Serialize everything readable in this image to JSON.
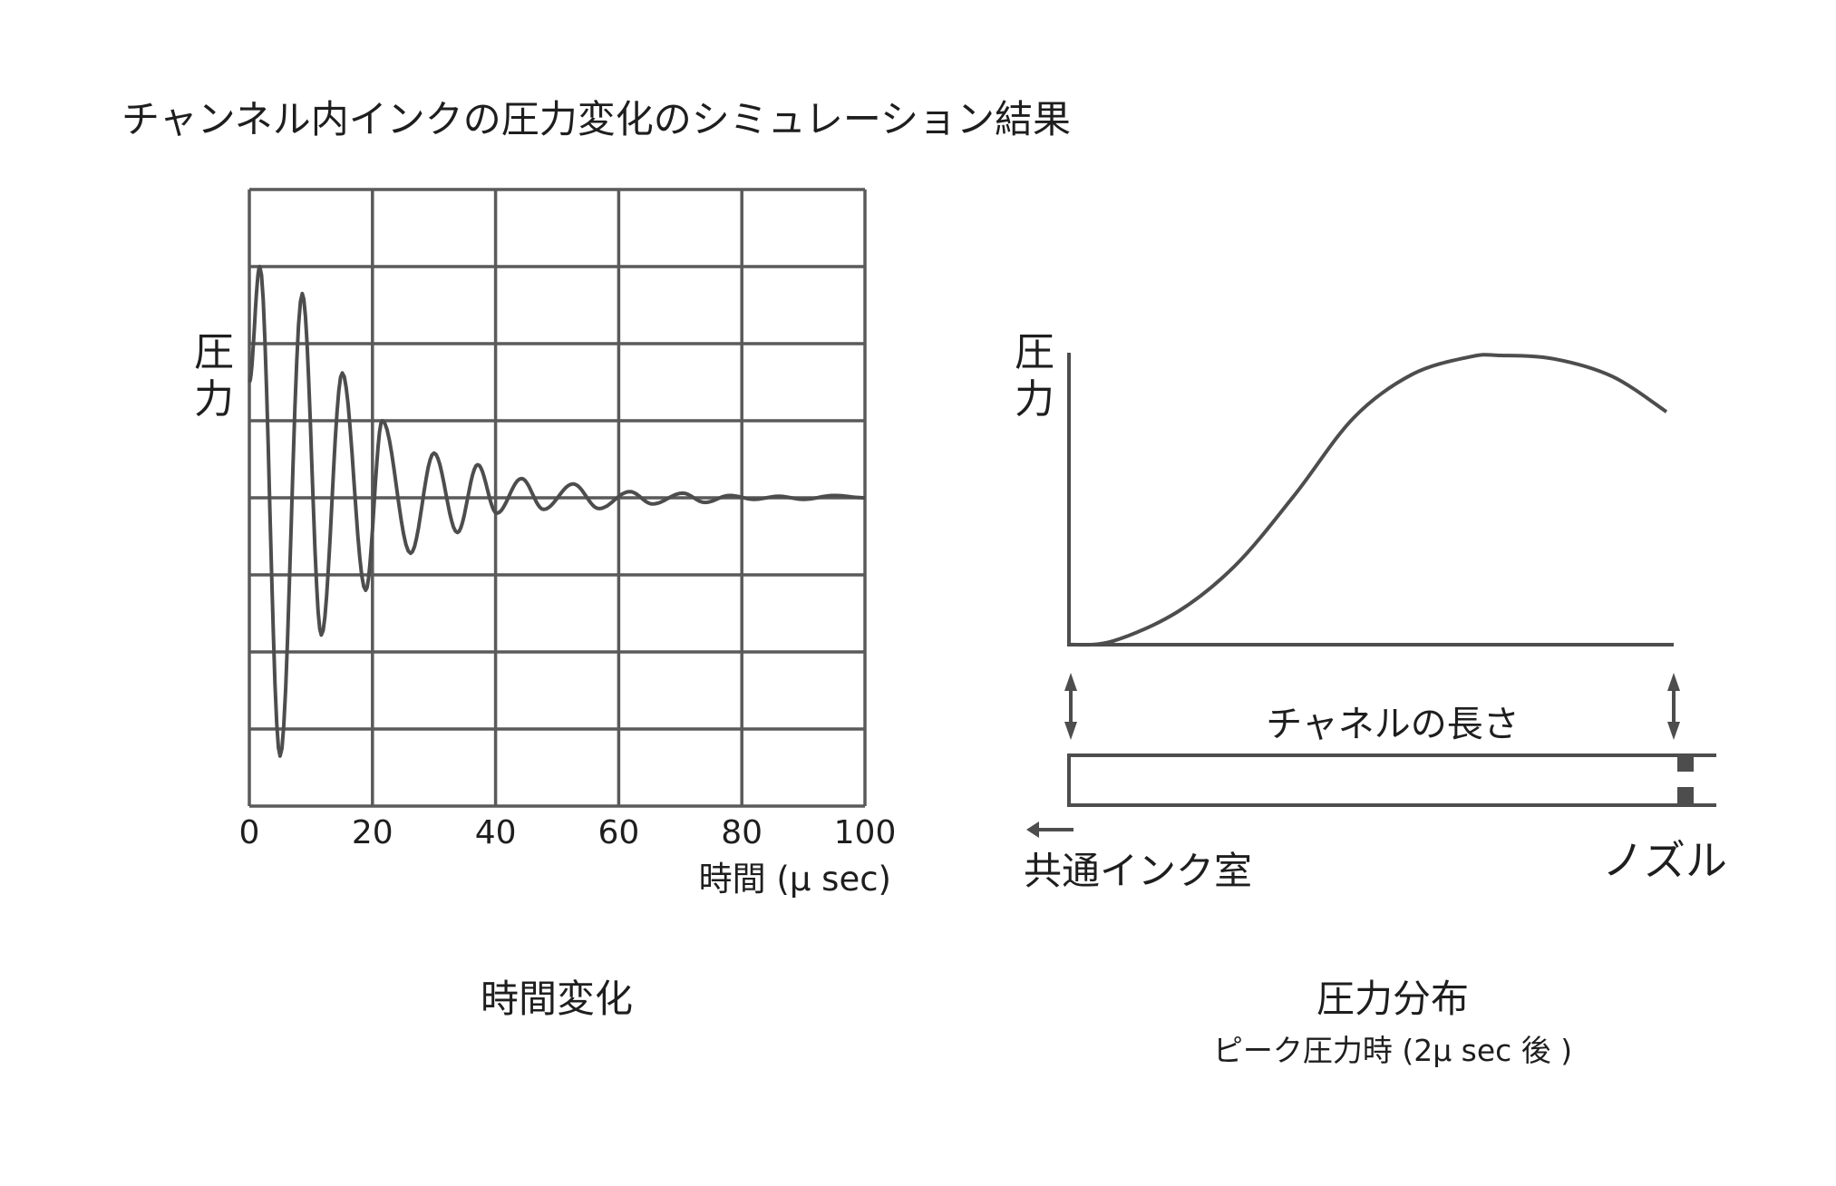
{
  "title": "チャンネル内インクの圧力変化のシミュレーション結果",
  "colors": {
    "line": "#4d4d4d",
    "text": "#1e1e1e"
  },
  "chart_data": [
    {
      "type": "line",
      "caption": "時間変化",
      "xlabel": "時間 (μ sec)",
      "ylabel": "圧力",
      "xlim": [
        0,
        100
      ],
      "ylim": [
        -4,
        4
      ],
      "xticks": [
        "0",
        "20",
        "40",
        "60",
        "80",
        "100"
      ],
      "grid": true,
      "series": [
        {
          "name": "圧力",
          "extrema": [
            [
              0,
              1.5
            ],
            [
              1.7,
              3.0
            ],
            [
              5.0,
              -3.35
            ],
            [
              8.6,
              2.65
            ],
            [
              11.7,
              -1.78
            ],
            [
              15.1,
              1.62
            ],
            [
              18.9,
              -1.2
            ],
            [
              21.6,
              1.0
            ],
            [
              26.2,
              -0.72
            ],
            [
              30.0,
              0.58
            ],
            [
              33.8,
              -0.45
            ],
            [
              37.1,
              0.43
            ],
            [
              40.2,
              -0.2
            ],
            [
              44.2,
              0.25
            ],
            [
              47.8,
              -0.15
            ],
            [
              52.6,
              0.18
            ],
            [
              56.8,
              -0.14
            ],
            [
              61.8,
              0.08
            ],
            [
              65.5,
              -0.08
            ],
            [
              70.4,
              0.06
            ],
            [
              74,
              -0.06
            ],
            [
              78,
              0.03
            ],
            [
              82,
              -0.02
            ],
            [
              86,
              0.02
            ],
            [
              90,
              -0.02
            ],
            [
              95,
              0.03
            ],
            [
              100,
              0
            ]
          ]
        }
      ]
    },
    {
      "type": "line",
      "caption": "圧力分布",
      "subcaption": "ピーク圧力時 (2μ sec 後 )",
      "ylabel": "圧力",
      "xlabel": "チャネルの長さ",
      "xlim": [
        0,
        1
      ],
      "ylim": [
        0,
        1
      ],
      "left_label": "共通インク室",
      "right_label": "ノズル",
      "series": [
        {
          "name": "圧力",
          "x": [
            0,
            0.072,
            0.179,
            0.276,
            0.374,
            0.471,
            0.568,
            0.665,
            0.714,
            0.802,
            0.899,
            0.988
          ],
          "y": [
            0,
            0.012,
            0.113,
            0.276,
            0.52,
            0.785,
            0.935,
            0.996,
            1.0,
            0.988,
            0.927,
            0.805
          ]
        }
      ]
    }
  ]
}
